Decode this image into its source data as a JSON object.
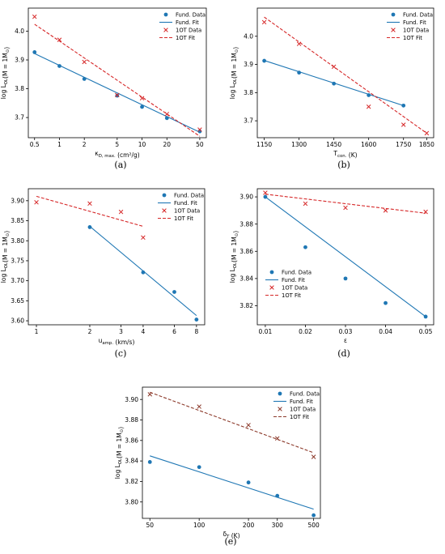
{
  "chart_data": [
    {
      "type": "scatter",
      "panel_label": "(a)",
      "xlabel": "κ_{D, max.} (cm²/g)",
      "ylabel": "log L_{OL}(M = 1M_⊙)",
      "xscale": "log",
      "x_ticks": [
        0.5,
        1,
        2,
        5,
        10,
        20,
        50
      ],
      "x_tick_labels": [
        "0.5",
        "1",
        "2",
        "5",
        "10",
        "20",
        "50"
      ],
      "y_ticks": [
        3.7,
        3.8,
        3.9,
        4.0
      ],
      "y_tick_labels": [
        "3.7",
        "3.8",
        "3.9",
        "4.0"
      ],
      "xlim": [
        0.42,
        60
      ],
      "ylim": [
        3.63,
        4.08
      ],
      "legend_position": "top-right",
      "series": [
        {
          "name": "Fund. Data",
          "kind": "points",
          "marker": "circle",
          "color": "#1f77b4",
          "x": [
            0.5,
            1,
            2,
            5,
            10,
            20,
            50
          ],
          "y": [
            3.927,
            3.879,
            3.834,
            3.776,
            3.737,
            3.698,
            3.652
          ]
        },
        {
          "name": "Fund. Fit",
          "kind": "fit",
          "color": "#1f77b4",
          "x": [
            0.5,
            50
          ],
          "y": [
            3.922,
            3.649
          ]
        },
        {
          "name": "1OT Data",
          "kind": "points",
          "marker": "x",
          "color": "#d62728",
          "x": [
            0.5,
            1,
            2,
            5,
            10,
            20,
            50
          ],
          "y": [
            4.05,
            3.97,
            3.893,
            3.778,
            3.767,
            3.712,
            3.658
          ]
        },
        {
          "name": "1OT Fit",
          "kind": "fit",
          "color": "#d62728",
          "x": [
            0.5,
            50
          ],
          "y": [
            4.024,
            3.635
          ]
        }
      ]
    },
    {
      "type": "scatter",
      "panel_label": "(b)",
      "xlabel": "T_{con.} (K)",
      "ylabel": "log L_{OL}(M = 1M_⊙)",
      "xscale": "linear",
      "x_ticks": [
        1150,
        1300,
        1450,
        1600,
        1750,
        1850
      ],
      "x_tick_labels": [
        "1150",
        "1300",
        "1450",
        "1600",
        "1750",
        "1850"
      ],
      "y_ticks": [
        3.7,
        3.8,
        3.9,
        4.0
      ],
      "y_tick_labels": [
        "3.7",
        "3.8",
        "3.9",
        "4.0"
      ],
      "xlim": [
        1120,
        1880
      ],
      "ylim": [
        3.64,
        4.1
      ],
      "legend_position": "top-right",
      "series": [
        {
          "name": "Fund. Data",
          "kind": "points",
          "marker": "circle",
          "color": "#1f77b4",
          "x": [
            1150,
            1300,
            1450,
            1600,
            1750
          ],
          "y": [
            3.913,
            3.871,
            3.832,
            3.791,
            3.754
          ]
        },
        {
          "name": "Fund. Fit",
          "kind": "fit",
          "color": "#1f77b4",
          "x": [
            1150,
            1750
          ],
          "y": [
            3.914,
            3.754
          ]
        },
        {
          "name": "1OT Data",
          "kind": "points",
          "marker": "x",
          "color": "#d62728",
          "x": [
            1150,
            1300,
            1450,
            1600,
            1750,
            1850
          ],
          "y": [
            4.05,
            3.973,
            3.892,
            3.75,
            3.686,
            3.656
          ]
        },
        {
          "name": "1OT Fit",
          "kind": "fit",
          "color": "#d62728",
          "x": [
            1150,
            1850
          ],
          "y": [
            4.068,
            3.656
          ]
        }
      ]
    },
    {
      "type": "scatter",
      "panel_label": "(c)",
      "xlabel": "u_{amp.} (km/s)",
      "ylabel": "log L_{OL}(M = 1M_⊙)",
      "xscale": "log",
      "x_ticks": [
        1,
        2,
        3,
        4,
        6,
        8
      ],
      "x_tick_labels": [
        "1",
        "2",
        "3",
        "4",
        "6",
        "8"
      ],
      "y_ticks": [
        3.6,
        3.65,
        3.7,
        3.75,
        3.8,
        3.85,
        3.9
      ],
      "y_tick_labels": [
        "3.60",
        "3.65",
        "3.70",
        "3.75",
        "3.80",
        "3.85",
        "3.90"
      ],
      "xlim": [
        0.9,
        8.9
      ],
      "ylim": [
        3.59,
        3.93
      ],
      "legend_position": "top-right",
      "series": [
        {
          "name": "Fund. Data",
          "kind": "points",
          "marker": "circle",
          "color": "#1f77b4",
          "x": [
            2,
            4,
            6,
            8
          ],
          "y": [
            3.834,
            3.721,
            3.672,
            3.603
          ]
        },
        {
          "name": "Fund. Fit",
          "kind": "fit",
          "color": "#1f77b4",
          "x": [
            2,
            8
          ],
          "y": [
            3.836,
            3.613
          ]
        },
        {
          "name": "1OT Data",
          "kind": "points",
          "marker": "x",
          "color": "#d62728",
          "x": [
            1,
            2,
            3,
            4
          ],
          "y": [
            3.896,
            3.893,
            3.872,
            3.808
          ]
        },
        {
          "name": "1OT Fit",
          "kind": "fit",
          "color": "#d62728",
          "x": [
            1,
            4
          ],
          "y": [
            3.911,
            3.836
          ]
        }
      ]
    },
    {
      "type": "scatter",
      "panel_label": "(d)",
      "xlabel": "ε",
      "ylabel": "log L_{OL}(M = 1M_⊙)",
      "xscale": "linear",
      "x_ticks": [
        0.01,
        0.02,
        0.03,
        0.04,
        0.05
      ],
      "x_tick_labels": [
        "0.01",
        "0.02",
        "0.03",
        "0.04",
        "0.05"
      ],
      "y_ticks": [
        3.82,
        3.84,
        3.86,
        3.88,
        3.9
      ],
      "y_tick_labels": [
        "3.82",
        "3.84",
        "3.86",
        "3.88",
        "3.90"
      ],
      "xlim": [
        0.008,
        0.052
      ],
      "ylim": [
        3.806,
        3.906
      ],
      "legend_position": "bottom-left",
      "series": [
        {
          "name": "Fund. Data",
          "kind": "points",
          "marker": "circle",
          "color": "#1f77b4",
          "x": [
            0.01,
            0.02,
            0.03,
            0.04,
            0.05
          ],
          "y": [
            3.9,
            3.863,
            3.84,
            3.822,
            3.812
          ]
        },
        {
          "name": "Fund. Fit",
          "kind": "fit",
          "color": "#1f77b4",
          "x": [
            0.01,
            0.05
          ],
          "y": [
            3.9,
            3.812
          ]
        },
        {
          "name": "1OT Data",
          "kind": "points",
          "marker": "x",
          "color": "#d62728",
          "x": [
            0.01,
            0.02,
            0.03,
            0.04,
            0.05
          ],
          "y": [
            3.903,
            3.895,
            3.892,
            3.89,
            3.889
          ]
        },
        {
          "name": "1OT Fit",
          "kind": "fit",
          "color": "#d62728",
          "x": [
            0.01,
            0.05
          ],
          "y": [
            3.902,
            3.888
          ]
        }
      ]
    },
    {
      "type": "scatter",
      "panel_label": "(e)",
      "xlabel": "δ_T (K)",
      "ylabel": "log L_{OL}(M = 1M_⊙)",
      "xscale": "log",
      "x_ticks": [
        50,
        100,
        200,
        300,
        500
      ],
      "x_tick_labels": [
        "50",
        "100",
        "200",
        "300",
        "500"
      ],
      "y_ticks": [
        3.8,
        3.82,
        3.84,
        3.86,
        3.88,
        3.9
      ],
      "y_tick_labels": [
        "3.80",
        "3.82",
        "3.84",
        "3.86",
        "3.88",
        "3.90"
      ],
      "xlim": [
        45,
        550
      ],
      "ylim": [
        3.784,
        3.912
      ],
      "legend_position": "top-right",
      "series": [
        {
          "name": "Fund. Data",
          "kind": "points",
          "marker": "circle",
          "color": "#1f77b4",
          "x": [
            50,
            100,
            200,
            300,
            500
          ],
          "y": [
            3.839,
            3.834,
            3.819,
            3.806,
            3.787
          ]
        },
        {
          "name": "Fund. Fit",
          "kind": "fit",
          "color": "#1f77b4",
          "x": [
            50,
            500
          ],
          "y": [
            3.845,
            3.793
          ]
        },
        {
          "name": "1OT Data",
          "kind": "points",
          "marker": "x",
          "color": "#8c3a2b",
          "x": [
            50,
            100,
            200,
            300,
            500
          ],
          "y": [
            3.905,
            3.893,
            3.875,
            3.862,
            3.844
          ]
        },
        {
          "name": "1OT Fit",
          "kind": "fit",
          "color": "#8c3a2b",
          "x": [
            50,
            500
          ],
          "y": [
            3.907,
            3.848
          ]
        }
      ]
    }
  ]
}
